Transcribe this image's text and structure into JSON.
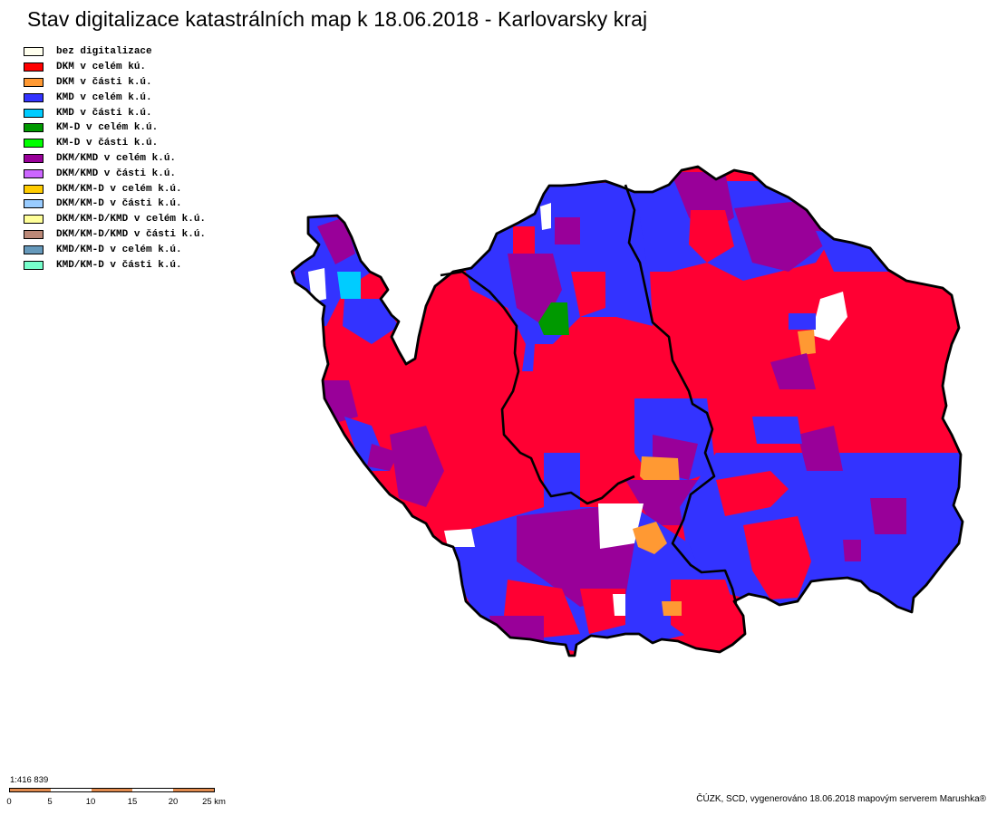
{
  "title": "Stav digitalizace katastrálních map k 18.06.2018 - Karlovarsky kraj",
  "legend": [
    {
      "label": "bez digitalizace",
      "color": "#ffffee"
    },
    {
      "label": "DKM v celém kú.",
      "color": "#ff0000"
    },
    {
      "label": "DKM v části k.ú.",
      "color": "#ff9933"
    },
    {
      "label": "KMD v celém k.ú.",
      "color": "#3333ff"
    },
    {
      "label": "KMD v části k.ú.",
      "color": "#00ccff"
    },
    {
      "label": "KM-D v celém k.ú.",
      "color": "#009900"
    },
    {
      "label": "KM-D v části k.ú.",
      "color": "#00ff00"
    },
    {
      "label": "DKM/KMD v celém k.ú.",
      "color": "#990099"
    },
    {
      "label": "DKM/KMD v části k.ú.",
      "color": "#cc66ff"
    },
    {
      "label": "DKM/KM-D v celém k.ú.",
      "color": "#ffcc00"
    },
    {
      "label": "DKM/KM-D v části k.ú.",
      "color": "#99ccff"
    },
    {
      "label": "DKM/KM-D/KMD v celém k.ú.",
      "color": "#ffff99"
    },
    {
      "label": "DKM/KM-D/KMD v části k.ú.",
      "color": "#bb8877"
    },
    {
      "label": "KMD/KM-D v celém k.ú.",
      "color": "#6699bb"
    },
    {
      "label": "KMD/KM-D v části k.ú.",
      "color": "#77ffcc"
    }
  ],
  "map": {
    "colors": {
      "dkm_full": "#ff0033",
      "kmd_full": "#3333ff",
      "dkm_kmd_full": "#990099",
      "dkm_part": "#ff9933",
      "kmd_part": "#00ccff",
      "kmd_d_full": "#009900",
      "none": "#ffffff"
    }
  },
  "scale": {
    "ratio": "1:416 839",
    "ticks": [
      "0",
      "5",
      "10",
      "15",
      "20",
      "25 km"
    ]
  },
  "credits": "ČÚZK, SCD, vygenerováno 18.06.2018 mapovým serverem Marushka®"
}
